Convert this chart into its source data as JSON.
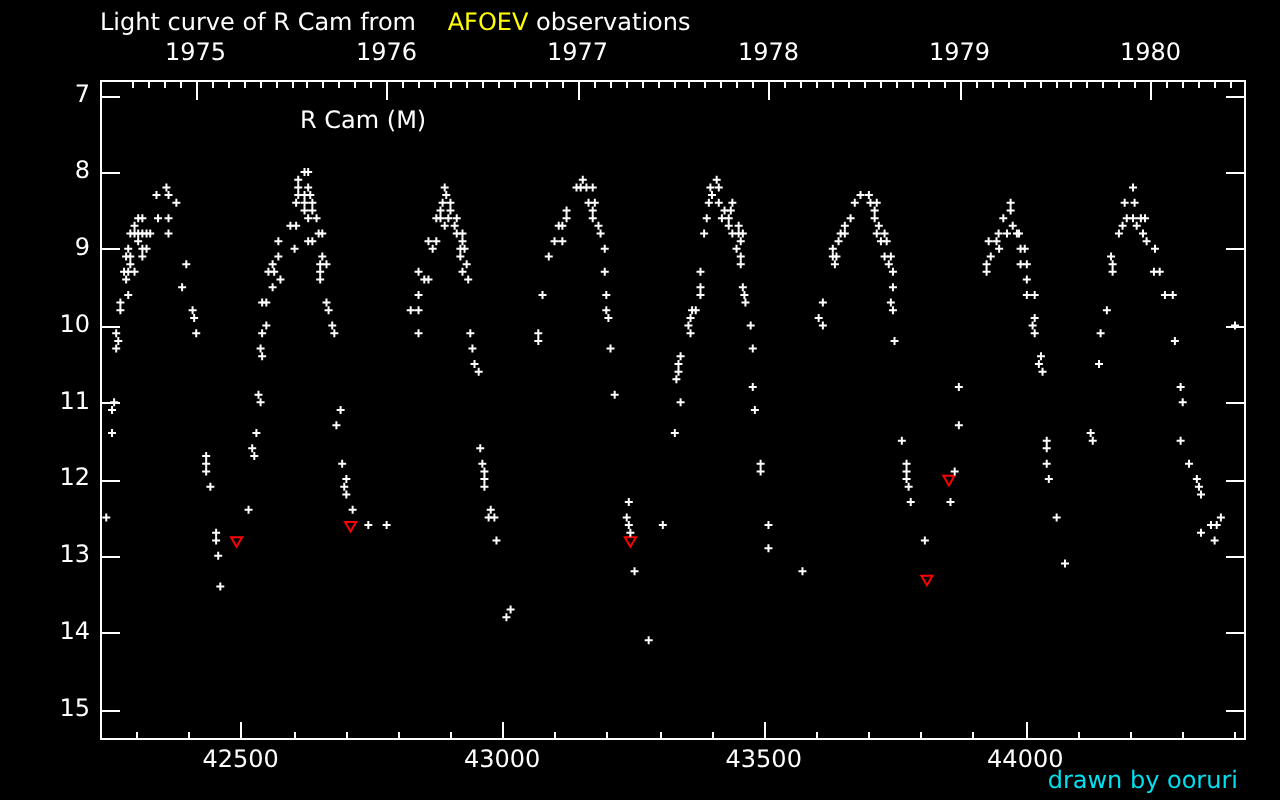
{
  "chart_data": {
    "type": "scatter",
    "title": "Light curve of R Cam from AFOEV observations",
    "annotations": [
      "R Cam (M)",
      "drawn by ooruri"
    ],
    "xlim": [
      42231,
      44422
    ],
    "xticks": [
      {
        "value": 42300,
        "label": null
      },
      {
        "value": 42400,
        "label": null
      },
      42500,
      {
        "value": 42600,
        "label": null
      },
      {
        "value": 42700,
        "label": null
      },
      {
        "value": 42800,
        "label": null
      },
      {
        "value": 42900,
        "label": null
      },
      43000,
      {
        "value": 43100,
        "label": null
      },
      {
        "value": 43200,
        "label": null
      },
      {
        "value": 43300,
        "label": null
      },
      {
        "value": 43400,
        "label": null
      },
      43500,
      {
        "value": 43600,
        "label": null
      },
      {
        "value": 43700,
        "label": null
      },
      {
        "value": 43800,
        "label": null
      },
      {
        "value": 43900,
        "label": null
      },
      44000,
      {
        "value": 44100,
        "label": null
      },
      {
        "value": 44200,
        "label": null
      },
      {
        "value": 44300,
        "label": null
      },
      {
        "value": 44400,
        "label": null
      }
    ],
    "x2lim": [
      1974.5,
      1980.5
    ],
    "x2ticks": [
      {
        "value": 1974.667,
        "label": null
      },
      {
        "value": 1974.75,
        "label": null
      },
      {
        "value": 1974.833,
        "label": null
      },
      {
        "value": 1974.917,
        "label": null
      },
      1975,
      {
        "value": 1975.083,
        "label": null
      },
      {
        "value": 1975.167,
        "label": null
      },
      {
        "value": 1975.25,
        "label": null
      },
      {
        "value": 1975.333,
        "label": null
      },
      {
        "value": 1975.417,
        "label": null
      },
      {
        "value": 1975.5,
        "label": null
      },
      {
        "value": 1975.583,
        "label": null
      },
      {
        "value": 1975.667,
        "label": null
      },
      {
        "value": 1975.75,
        "label": null
      },
      {
        "value": 1975.833,
        "label": null
      },
      {
        "value": 1975.917,
        "label": null
      },
      1976,
      {
        "value": 1976.083,
        "label": null
      },
      {
        "value": 1976.167,
        "label": null
      },
      {
        "value": 1976.25,
        "label": null
      },
      {
        "value": 1976.333,
        "label": null
      },
      {
        "value": 1976.417,
        "label": null
      },
      {
        "value": 1976.5,
        "label": null
      },
      {
        "value": 1976.583,
        "label": null
      },
      {
        "value": 1976.667,
        "label": null
      },
      {
        "value": 1976.75,
        "label": null
      },
      {
        "value": 1976.833,
        "label": null
      },
      {
        "value": 1976.917,
        "label": null
      },
      1977,
      {
        "value": 1977.083,
        "label": null
      },
      {
        "value": 1977.167,
        "label": null
      },
      {
        "value": 1977.25,
        "label": null
      },
      {
        "value": 1977.333,
        "label": null
      },
      {
        "value": 1977.417,
        "label": null
      },
      {
        "value": 1977.5,
        "label": null
      },
      {
        "value": 1977.583,
        "label": null
      },
      {
        "value": 1977.667,
        "label": null
      },
      {
        "value": 1977.75,
        "label": null
      },
      {
        "value": 1977.833,
        "label": null
      },
      {
        "value": 1977.917,
        "label": null
      },
      1978,
      {
        "value": 1978.083,
        "label": null
      },
      {
        "value": 1978.167,
        "label": null
      },
      {
        "value": 1978.25,
        "label": null
      },
      {
        "value": 1978.333,
        "label": null
      },
      {
        "value": 1978.417,
        "label": null
      },
      {
        "value": 1978.5,
        "label": null
      },
      {
        "value": 1978.583,
        "label": null
      },
      {
        "value": 1978.667,
        "label": null
      },
      {
        "value": 1978.75,
        "label": null
      },
      {
        "value": 1978.833,
        "label": null
      },
      {
        "value": 1978.917,
        "label": null
      },
      1979,
      {
        "value": 1979.083,
        "label": null
      },
      {
        "value": 1979.167,
        "label": null
      },
      {
        "value": 1979.25,
        "label": null
      },
      {
        "value": 1979.333,
        "label": null
      },
      {
        "value": 1979.417,
        "label": null
      },
      {
        "value": 1979.5,
        "label": null
      },
      {
        "value": 1979.583,
        "label": null
      },
      {
        "value": 1979.667,
        "label": null
      },
      {
        "value": 1979.75,
        "label": null
      },
      {
        "value": 1979.833,
        "label": null
      },
      {
        "value": 1979.917,
        "label": null
      },
      1980,
      {
        "value": 1980.083,
        "label": null
      },
      {
        "value": 1980.167,
        "label": null
      },
      {
        "value": 1980.25,
        "label": null
      },
      {
        "value": 1980.333,
        "label": null
      },
      {
        "value": 1980.417,
        "label": null
      }
    ],
    "ylim": [
      15.4,
      6.8
    ],
    "yticks": [
      7,
      8,
      9,
      10,
      11,
      12,
      13,
      14,
      15
    ],
    "series": [
      {
        "color": "#ffffff",
        "marker": "cross",
        "x": [
          42243,
          42254,
          42254,
          42258,
          42262,
          42266,
          42262,
          42270,
          42270,
          42285,
          42281,
          42285,
          42277,
          42289,
          42297,
          42281,
          42289,
          42285,
          42289,
          42297,
          42304,
          42312,
          42320,
          42327,
          42297,
          42304,
          42312,
          42304,
          42312,
          42320,
          42312,
          42339,
          42342,
          42358,
          42362,
          42362,
          42362,
          42377,
          42396,
          42388,
          42408,
          42411,
          42415,
          42434,
          42434,
          42434,
          42442,
          42453,
          42453,
          42457,
          42461,
          42515,
          42522,
          42526,
          42530,
          42534,
          42538,
          42538,
          42541,
          42541,
          42549,
          42541,
          42549,
          42561,
          42553,
          42561,
          42564,
          42572,
          42576,
          42572,
          42595,
          42606,
          42603,
          42610,
          42622,
          42629,
          42610,
          42629,
          42610,
          42622,
          42633,
          42606,
          42622,
          42637,
          42622,
          42637,
          42629,
          42645,
          42629,
          42637,
          42649,
          42656,
          42656,
          42664,
          42652,
          42652,
          42652,
          42664,
          42668,
          42675,
          42679,
          42683,
          42691,
          42694,
          42702,
          42698,
          42702,
          42714,
          42744,
          42779,
          42825,
          42840,
          42840,
          42840,
          42840,
          42851,
          42859,
          42859,
          42874,
          42867,
          42874,
          42882,
          42882,
          42890,
          42893,
          42886,
          42901,
          42890,
          42909,
          42897,
          42913,
          42901,
          42913,
          42924,
          42920,
          42928,
          42924,
          42920,
          42932,
          42924,
          42935,
          42939,
          42943,
          42947,
          42955,
          42958,
          42962,
          42966,
          42966,
          42966,
          42978,
          42974,
          42985,
          42989,
          43016,
          43008,
          43069,
          43069,
          43077,
          43089,
          43100,
          43115,
          43108,
          43115,
          43123,
          43123,
          43154,
          43142,
          43150,
          43161,
          43173,
          43165,
          43177,
          43173,
          43173,
          43184,
          43188,
          43196,
          43196,
          43199,
          43199,
          43203,
          43207,
          43215,
          43242,
          43238,
          43242,
          43245,
          43253,
          43280,
          43307,
          43330,
          43341,
          43333,
          43337,
          43337,
          43341,
          43360,
          43356,
          43360,
          43363,
          43370,
          43379,
          43379,
          43379,
          43391,
          43386,
          43395,
          43398,
          43414,
          43410,
          43401,
          43414,
          43440,
          43425,
          43437,
          43420,
          43433,
          43433,
          43440,
          43452,
          43460,
          43452,
          43456,
          43448,
          43456,
          43456,
          43460,
          43463,
          43465,
          43475,
          43479,
          43479,
          43483,
          43494,
          43494,
          43509,
          43509,
          43574,
          43613,
          43605,
          43613,
          43636,
          43632,
          43639,
          43632,
          43643,
          43647,
          43655,
          43655,
          43666,
          43674,
          43685,
          43701,
          43704,
          43716,
          43712,
          43712,
          43720,
          43716,
          43731,
          43724,
          43735,
          43731,
          43743,
          43739,
          43747,
          43747,
          43743,
          43747,
          43750,
          43764,
          43773,
          43773,
          43773,
          43777,
          43781,
          43808,
          43857,
          43865,
          43873,
          43873,
          43926,
          43926,
          43934,
          43930,
          43945,
          43950,
          43949,
          43965,
          43984,
          43958,
          43972,
          43972,
          43976,
          43988,
          43991,
          43999,
          43991,
          44003,
          44003,
          44003,
          44018,
          44018,
          44014,
          44018,
          44030,
          44026,
          44033,
          44041,
          44041,
          44041,
          44045,
          44060,
          44076,
          44125,
          44129,
          44141,
          44144,
          44156,
          44164,
          44167,
          44167,
          44179,
          44186,
          44190,
          44194,
          44206,
          44206,
          44209,
          44213,
          44221,
          44229,
          44225,
          44232,
          44248,
          44246,
          44257,
          44267,
          44282,
          44286,
          44297,
          44301,
          44297,
          44313,
          44328,
          44332,
          44336,
          44374,
          44355,
          44366,
          44336,
          44362,
          44401
        ],
        "values": [
          12.5,
          11.1,
          11.4,
          11.0,
          10.1,
          10.2,
          10.3,
          9.7,
          9.8,
          9.6,
          9.4,
          9.3,
          9.3,
          9.2,
          9.3,
          9.1,
          9.1,
          9.0,
          8.8,
          8.8,
          8.8,
          8.8,
          8.8,
          8.8,
          8.7,
          8.6,
          8.6,
          8.9,
          9.0,
          9.0,
          9.1,
          8.3,
          8.6,
          8.2,
          8.3,
          8.6,
          8.8,
          8.4,
          9.2,
          9.5,
          9.8,
          9.9,
          10.1,
          11.7,
          11.8,
          11.9,
          12.1,
          12.7,
          12.8,
          13.0,
          13.4,
          12.4,
          11.6,
          11.7,
          11.4,
          10.9,
          11.0,
          10.3,
          10.4,
          10.1,
          10.0,
          9.7,
          9.7,
          9.5,
          9.3,
          9.2,
          9.3,
          9.1,
          9.4,
          8.9,
          8.7,
          8.7,
          9.0,
          8.1,
          8.0,
          8.0,
          8.2,
          8.2,
          8.3,
          8.3,
          8.3,
          8.4,
          8.4,
          8.4,
          8.5,
          8.5,
          8.6,
          8.6,
          8.9,
          8.9,
          8.8,
          8.8,
          9.1,
          9.2,
          9.2,
          9.3,
          9.4,
          9.7,
          9.8,
          10.0,
          10.1,
          11.3,
          11.1,
          11.8,
          12.0,
          12.1,
          12.2,
          12.4,
          12.6,
          12.6,
          9.8,
          9.8,
          10.1,
          9.6,
          9.3,
          9.4,
          9.4,
          8.9,
          8.9,
          9.0,
          8.6,
          8.6,
          8.5,
          8.2,
          8.3,
          8.4,
          8.4,
          8.7,
          8.7,
          8.6,
          8.6,
          8.5,
          8.8,
          8.8,
          9.0,
          9.0,
          8.9,
          9.1,
          9.2,
          9.3,
          9.4,
          10.1,
          10.3,
          10.5,
          10.6,
          11.6,
          11.8,
          11.9,
          12.0,
          12.1,
          12.4,
          12.5,
          12.5,
          12.8,
          13.7,
          13.8,
          10.1,
          10.2,
          9.6,
          9.1,
          8.9,
          8.9,
          8.7,
          8.7,
          8.6,
          8.5,
          8.1,
          8.2,
          8.2,
          8.2,
          8.2,
          8.4,
          8.4,
          8.5,
          8.6,
          8.7,
          8.8,
          9.0,
          9.3,
          9.6,
          9.8,
          9.9,
          10.3,
          10.9,
          12.3,
          12.5,
          12.6,
          12.7,
          13.2,
          14.1,
          12.6,
          11.4,
          11.0,
          10.7,
          10.6,
          10.5,
          10.4,
          10.1,
          10.0,
          9.9,
          9.8,
          9.8,
          9.6,
          9.5,
          9.3,
          8.6,
          8.8,
          8.4,
          8.2,
          8.2,
          8.1,
          8.3,
          8.4,
          8.4,
          8.5,
          8.5,
          8.6,
          8.6,
          8.7,
          8.8,
          8.8,
          8.8,
          8.7,
          8.9,
          9.0,
          9.1,
          9.2,
          9.5,
          9.6,
          9.7,
          10.0,
          10.3,
          10.8,
          11.1,
          11.8,
          11.9,
          12.6,
          12.9,
          13.2,
          9.7,
          9.9,
          10.0,
          9.2,
          9.1,
          9.1,
          9.0,
          8.9,
          8.8,
          8.8,
          8.7,
          8.6,
          8.4,
          8.3,
          8.3,
          8.4,
          8.4,
          8.5,
          8.6,
          8.7,
          8.8,
          8.8,
          8.9,
          8.9,
          9.1,
          9.1,
          9.2,
          9.3,
          9.5,
          9.7,
          9.8,
          10.2,
          11.5,
          11.8,
          11.9,
          12.0,
          12.1,
          12.3,
          12.8,
          12.3,
          11.9,
          11.3,
          10.8,
          9.2,
          9.3,
          9.1,
          8.9,
          8.9,
          9.0,
          8.8,
          8.8,
          8.8,
          8.6,
          8.5,
          8.4,
          8.7,
          8.8,
          9.0,
          9.0,
          9.2,
          9.2,
          9.4,
          9.6,
          9.6,
          9.9,
          10.0,
          10.1,
          10.4,
          10.5,
          10.6,
          11.5,
          11.6,
          11.8,
          12.0,
          12.5,
          13.1,
          11.4,
          11.5,
          10.5,
          10.1,
          9.8,
          9.1,
          9.2,
          9.3,
          8.8,
          8.7,
          8.4,
          8.6,
          8.6,
          8.2,
          8.4,
          8.7,
          8.6,
          8.6,
          8.8,
          8.9,
          9.0,
          9.3,
          9.3,
          9.6,
          9.6,
          10.2,
          10.8,
          11.0,
          11.5,
          11.8,
          12.0,
          12.1,
          12.2,
          12.5,
          12.6,
          12.6,
          12.7,
          12.8,
          10.0
        ]
      },
      {
        "color": "#ff0000",
        "marker": "triangle",
        "x": [
          42492,
          42710,
          43245,
          43812,
          43854
        ],
        "values": [
          12.8,
          12.6,
          12.8,
          13.3,
          12.0
        ]
      }
    ]
  }
}
